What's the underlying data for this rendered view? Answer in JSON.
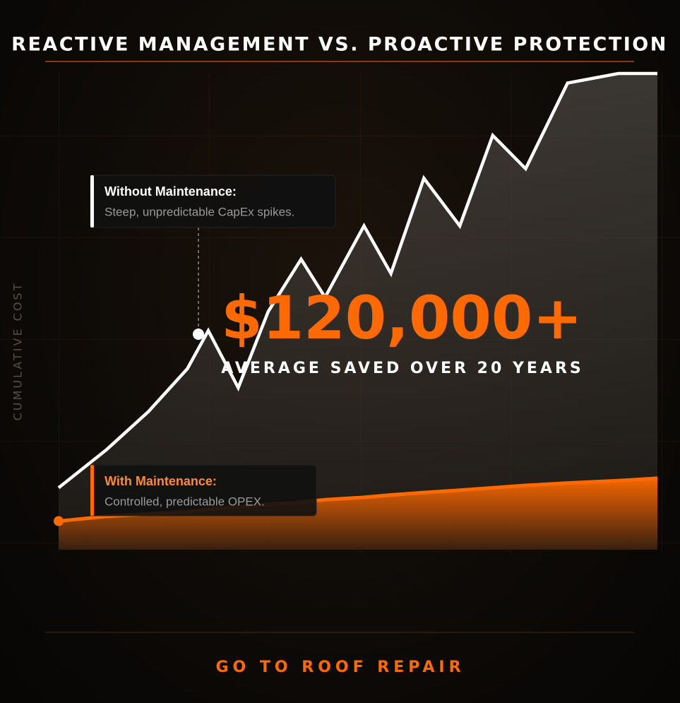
{
  "title": "REACTIVE MANAGEMENT VS. PROACTIVE PROTECTION",
  "chart_data": {
    "type": "line",
    "y_label": "CUMULATIVE COST",
    "x": [
      0,
      1.6,
      3,
      4.3,
      5,
      6,
      7,
      8.1,
      8.9,
      10.2,
      11.1,
      12.2,
      13.4,
      14.5,
      15.6,
      17,
      18.7,
      20
    ],
    "xlim": [
      0,
      20
    ],
    "ylim": [
      0,
      100
    ],
    "series": [
      {
        "name": "Without Maintenance:",
        "description": "Steep, unpredictable CapEx spikes.",
        "color": "#ffffff",
        "values": [
          13,
          21,
          29,
          38,
          46,
          34,
          50,
          61,
          53,
          68,
          58,
          78,
          68,
          87,
          80,
          98,
          100,
          100
        ]
      },
      {
        "name": "With Maintenance:",
        "description": "Controlled, predictable OPEX.",
        "color": "#ff6a00",
        "values": [
          6,
          7,
          7.5,
          8,
          8.5,
          9,
          9.5,
          10,
          10.5,
          11,
          11.5,
          12,
          12.5,
          13,
          13.5,
          14,
          14.5,
          15
        ]
      }
    ],
    "highlight": {
      "value": "$120,000+",
      "caption": "AVERAGE SAVED OVER 20 YEARS"
    }
  },
  "link": "GO TO ROOF REPAIR"
}
